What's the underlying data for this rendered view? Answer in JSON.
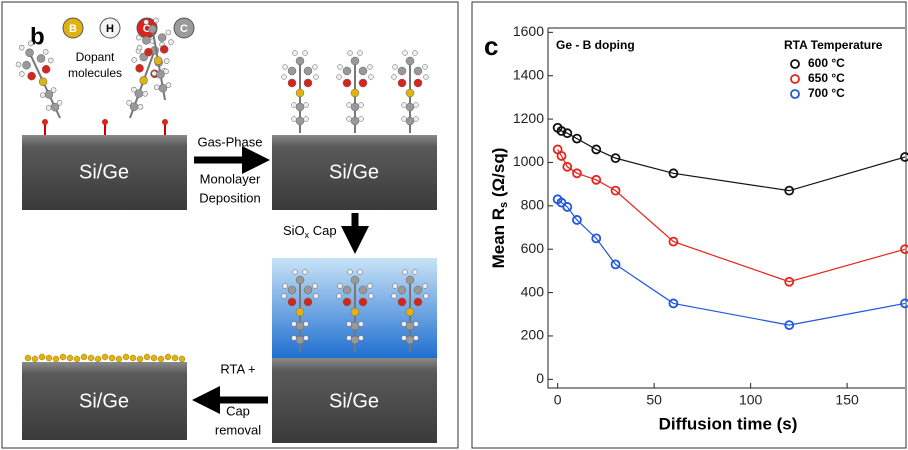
{
  "panel_b": {
    "label": "b",
    "atoms": [
      "B",
      "H",
      "O",
      "C"
    ],
    "dopant_label": [
      "Dopant",
      "molecules"
    ],
    "substrates": [
      "Si/Ge",
      "Si/Ge",
      "Si/Ge",
      "Si/Ge"
    ],
    "step1": [
      "Gas-Phase",
      "Monolayer",
      "Deposition"
    ],
    "step2": {
      "base": "SiO",
      "sub": "x",
      "rest": " Cap"
    },
    "step3": [
      "RTA +",
      "Cap",
      "removal"
    ]
  },
  "chart_data": {
    "type": "line",
    "panel_label": "c",
    "annotation": "Ge - B doping",
    "legend_title": "RTA Temperature",
    "xlabel": "Diffusion time (s)",
    "ylabel": {
      "text": "Mean R",
      "sub": "s",
      "unit": " (Ω/sq)"
    },
    "x": [
      0,
      2,
      5,
      10,
      20,
      30,
      60,
      120,
      180
    ],
    "series": [
      {
        "name": "600 °C",
        "color": "#111111",
        "values": [
          1160,
          1145,
          1135,
          1110,
          1060,
          1020,
          950,
          870,
          1025
        ]
      },
      {
        "name": "650 °C",
        "color": "#e8231c",
        "values": [
          1060,
          1030,
          980,
          950,
          920,
          870,
          635,
          450,
          600
        ]
      },
      {
        "name": "700 °C",
        "color": "#1f57e0",
        "values": [
          830,
          815,
          795,
          735,
          650,
          530,
          350,
          250,
          350
        ]
      }
    ],
    "xlim": [
      -5,
      180
    ],
    "ylim": [
      -40,
      1620
    ],
    "xticks": [
      0,
      50,
      100,
      150
    ],
    "yticks": [
      0,
      200,
      400,
      600,
      800,
      1000,
      1200,
      1400,
      1600
    ]
  }
}
